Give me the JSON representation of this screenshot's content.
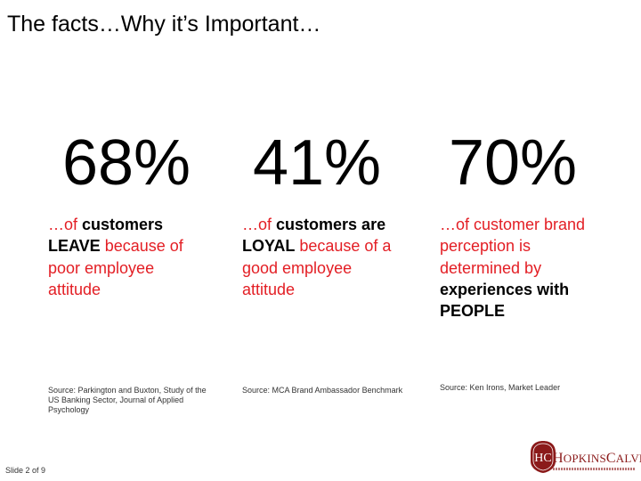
{
  "slide": {
    "title": "The facts…Why it’s Important…",
    "footer": "Slide 2 of 9"
  },
  "stats": [
    {
      "value": "68%",
      "pre": "…of ",
      "bold": "customers LEAVE",
      "post": " because of poor employee attitude",
      "source": "Source: Parkington and Buxton, Study of the US Banking Sector, Journal of Applied Psychology"
    },
    {
      "value": "41%",
      "pre": "…of ",
      "bold": "customers are LOYAL",
      "post": " because of a good employee attitude",
      "source": "Source: MCA Brand Ambassador Benchmark"
    },
    {
      "value": "70%",
      "pre": "…of customer brand perception is determined by ",
      "bold": "experiences with PEOPLE",
      "post": "",
      "source": "Source: Ken Irons, Market Leader"
    }
  ],
  "logo": {
    "monogram": "HC",
    "name_first_cap": "H",
    "name_first_rest": "OPKINS",
    "name_second_cap": "C",
    "name_second_rest": "ALVERT",
    "brand_color": "#8b1a1a"
  },
  "colors": {
    "accent": "#e31e24",
    "text": "#000000"
  }
}
